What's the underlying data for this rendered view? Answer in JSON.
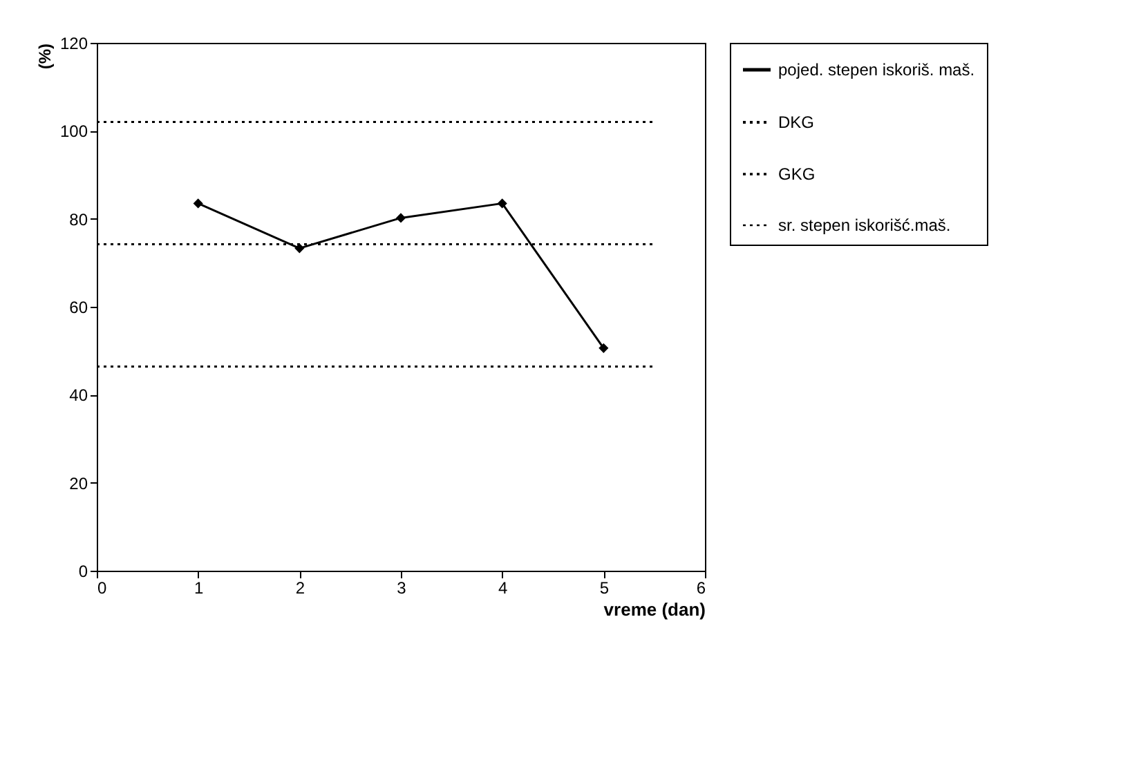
{
  "chart_data": {
    "type": "line",
    "xlabel": "vreme (dan)",
    "ylabel": "(%)",
    "xlim": [
      0,
      6
    ],
    "xticks": [
      0,
      1,
      2,
      3,
      4,
      5,
      6
    ],
    "ylim": [
      0,
      120
    ],
    "yticks": [
      0,
      20,
      40,
      60,
      80,
      100,
      120
    ],
    "grid": false,
    "legend": "right",
    "series": [
      {
        "name": "pojed. stepen iskoriš. maš.",
        "color": "#000000",
        "x": [
          1,
          2,
          3,
          4,
          5
        ],
        "values": [
          83.5,
          73.3,
          80.2,
          83.5,
          50.6
        ],
        "marker": "diamond",
        "line_style": "solid"
      },
      {
        "name": "DKG",
        "color": "#000000",
        "x": [
          0,
          1,
          2,
          3,
          4,
          5,
          5.5
        ],
        "values": [
          46.4,
          46.4,
          46.4,
          46.4,
          46.4,
          46.4,
          46.4
        ],
        "marker": "none",
        "line_style": "dotted"
      },
      {
        "name": "GKG",
        "color": "#000000",
        "x": [
          0,
          1,
          2,
          3,
          4,
          5,
          5.5
        ],
        "values": [
          102,
          102,
          102,
          102,
          102,
          102,
          102
        ],
        "marker": "none",
        "line_style": "dotted"
      },
      {
        "name": "sr. stepen iskorišć.maš.",
        "color": "#000000",
        "x": [
          0,
          1,
          2,
          3,
          4,
          5,
          5.5
        ],
        "values": [
          74.2,
          74.2,
          74.2,
          74.2,
          74.2,
          74.2,
          74.2
        ],
        "marker": "none",
        "line_style": "dotted"
      }
    ]
  }
}
